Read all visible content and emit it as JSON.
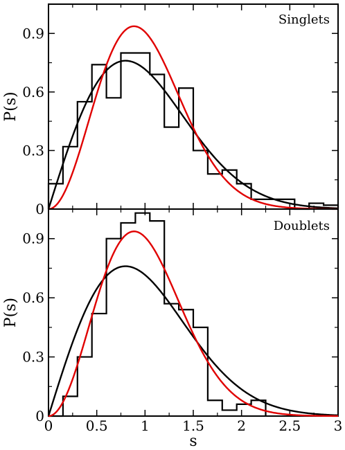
{
  "chart_data": [
    {
      "type": "line",
      "panel_label": "Singlets",
      "xlabel": "",
      "ylabel": "P(s)",
      "xlim": [
        0,
        3
      ],
      "ylim": [
        0,
        1.05
      ],
      "x_ticks": [
        0,
        0.5,
        1,
        1.5,
        2,
        2.5,
        3
      ],
      "x_tick_labels": [],
      "y_ticks": [
        0,
        0.3,
        0.6,
        0.9
      ],
      "y_tick_labels": [
        "0",
        "0.3",
        "0.6",
        "0.9"
      ],
      "histogram": {
        "bin_edges": [
          0,
          0.15,
          0.3,
          0.45,
          0.6,
          0.75,
          0.9,
          1.05,
          1.2,
          1.35,
          1.5,
          1.65,
          1.8,
          1.95,
          2.1,
          2.25,
          2.4,
          2.55,
          2.7,
          2.85,
          3.0
        ],
        "values": [
          0.13,
          0.32,
          0.55,
          0.74,
          0.57,
          0.8,
          0.8,
          0.69,
          0.42,
          0.62,
          0.3,
          0.18,
          0.2,
          0.13,
          0.05,
          0.05,
          0.05,
          0.0,
          0.03,
          0.02
        ],
        "color": "#000000"
      },
      "curves": [
        {
          "model": "goe",
          "color": "#000000"
        },
        {
          "model": "gue",
          "color": "#e00000"
        }
      ]
    },
    {
      "type": "line",
      "panel_label": "Doublets",
      "xlabel": "s",
      "ylabel": "P(s)",
      "xlim": [
        0,
        3
      ],
      "ylim": [
        0,
        1.05
      ],
      "x_ticks": [
        0,
        0.5,
        1,
        1.5,
        2,
        2.5,
        3
      ],
      "x_tick_labels": [
        "0",
        "0.5",
        "1",
        "1.5",
        "2",
        "2.5",
        "3"
      ],
      "y_ticks": [
        0,
        0.3,
        0.6,
        0.9
      ],
      "y_tick_labels": [
        "0",
        "0.3",
        "0.6",
        "0.9"
      ],
      "histogram": {
        "bin_edges": [
          0,
          0.15,
          0.3,
          0.45,
          0.6,
          0.75,
          0.9,
          1.05,
          1.2,
          1.35,
          1.5,
          1.65,
          1.8,
          1.95,
          2.1,
          2.25
        ],
        "values": [
          0.0,
          0.1,
          0.3,
          0.52,
          0.9,
          0.98,
          1.03,
          0.99,
          0.57,
          0.54,
          0.45,
          0.08,
          0.03,
          0.06,
          0.08
        ],
        "color": "#000000"
      },
      "curves": [
        {
          "model": "goe",
          "color": "#000000"
        },
        {
          "model": "gue",
          "color": "#e00000"
        }
      ]
    }
  ]
}
